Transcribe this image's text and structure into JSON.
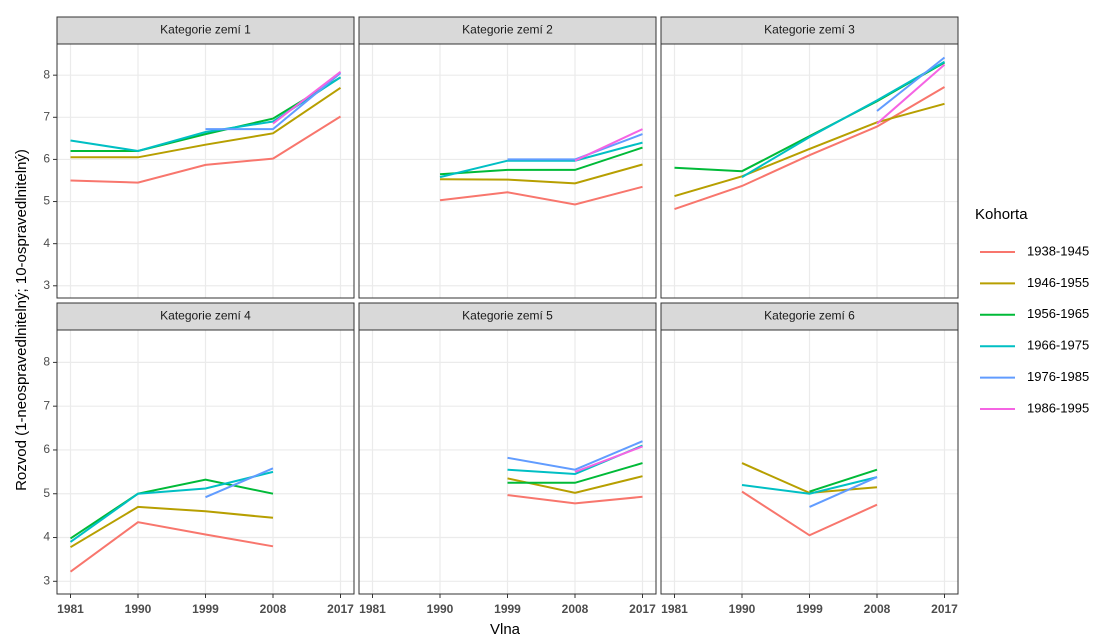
{
  "chart_data": {
    "type": "line",
    "x_label": "Vlna",
    "y_label": "Rozvod (1-neospravedlnitelný; 10-ospravedlnitelný)",
    "legend_title": "Kohorta",
    "x": [
      1981,
      1990,
      1999,
      2008,
      2017
    ],
    "xlim": [
      1979.2,
      2018.8
    ],
    "xticks": [
      1981,
      1990,
      1999,
      2008,
      2017
    ],
    "ylim": [
      2.71,
      8.74
    ],
    "yticks": [
      3,
      4,
      5,
      6,
      7,
      8
    ],
    "grid": true,
    "series": [
      {
        "name": "1938-1945",
        "color": "#F8766D"
      },
      {
        "name": "1946-1955",
        "color": "#B79F00"
      },
      {
        "name": "1956-1965",
        "color": "#00BA38"
      },
      {
        "name": "1966-1975",
        "color": "#00BFC4"
      },
      {
        "name": "1976-1985",
        "color": "#619CFF"
      },
      {
        "name": "1986-1995",
        "color": "#F564E3"
      }
    ],
    "panels": [
      {
        "title": "Kategorie zemí 1",
        "values": [
          [
            5.5,
            5.45,
            5.87,
            6.02,
            7.02
          ],
          [
            6.05,
            6.05,
            6.35,
            6.62,
            7.7
          ],
          [
            6.2,
            6.2,
            6.6,
            6.97,
            7.95
          ],
          [
            6.45,
            6.2,
            6.65,
            6.9,
            7.95
          ],
          [
            null,
            null,
            6.72,
            6.72,
            8.05
          ],
          [
            null,
            null,
            null,
            6.85,
            8.08
          ]
        ]
      },
      {
        "title": "Kategorie zemí 2",
        "values": [
          [
            null,
            5.03,
            5.22,
            4.93,
            5.35
          ],
          [
            null,
            5.53,
            5.52,
            5.43,
            5.88
          ],
          [
            null,
            5.65,
            5.75,
            5.75,
            6.28
          ],
          [
            null,
            5.58,
            5.97,
            5.97,
            6.4
          ],
          [
            null,
            null,
            6.0,
            6.0,
            6.6
          ],
          [
            null,
            null,
            null,
            5.97,
            6.72
          ]
        ]
      },
      {
        "title": "Kategorie zemí 3",
        "values": [
          [
            4.82,
            5.37,
            6.1,
            6.78,
            7.72
          ],
          [
            5.13,
            5.6,
            6.25,
            6.88,
            7.32
          ],
          [
            5.8,
            5.72,
            6.55,
            7.38,
            8.3
          ],
          [
            null,
            5.58,
            6.53,
            7.4,
            8.32
          ],
          [
            null,
            null,
            null,
            7.15,
            8.42
          ],
          [
            null,
            null,
            null,
            6.85,
            8.25
          ]
        ]
      },
      {
        "title": "Kategorie zemí 4",
        "values": [
          [
            3.22,
            4.35,
            4.07,
            3.8,
            null
          ],
          [
            3.78,
            4.7,
            4.6,
            4.45,
            null
          ],
          [
            3.98,
            5.0,
            5.32,
            5.0,
            null
          ],
          [
            3.9,
            5.0,
            5.12,
            5.5,
            null
          ],
          [
            null,
            null,
            4.92,
            5.58,
            null
          ],
          [
            null,
            null,
            null,
            null,
            null
          ]
        ]
      },
      {
        "title": "Kategorie zemí 5",
        "values": [
          [
            null,
            null,
            4.97,
            4.78,
            4.93
          ],
          [
            null,
            null,
            5.35,
            5.02,
            5.4
          ],
          [
            null,
            null,
            5.25,
            5.25,
            5.7
          ],
          [
            null,
            null,
            5.55,
            5.45,
            6.1
          ],
          [
            null,
            null,
            5.82,
            5.55,
            6.2
          ],
          [
            null,
            null,
            null,
            5.5,
            6.08
          ]
        ]
      },
      {
        "title": "Kategorie zemí 6",
        "values": [
          [
            null,
            5.05,
            4.05,
            4.75,
            null
          ],
          [
            null,
            5.7,
            5.02,
            5.15,
            null
          ],
          [
            null,
            null,
            5.05,
            5.55,
            null
          ],
          [
            null,
            5.2,
            5.0,
            5.38,
            null
          ],
          [
            null,
            null,
            4.7,
            5.38,
            null
          ],
          [
            null,
            null,
            null,
            null,
            null
          ]
        ]
      }
    ]
  }
}
